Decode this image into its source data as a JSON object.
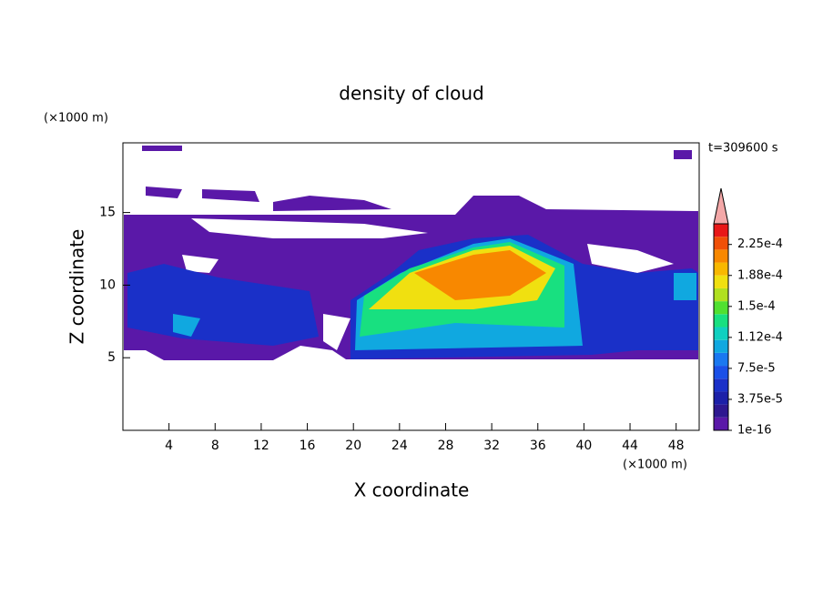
{
  "chart_data": {
    "type": "contour",
    "title": "density of cloud",
    "x_label": "X coordinate",
    "y_label": "Z coordinate",
    "x_unit": "(×1000 m)",
    "y_unit": "(×1000 m)",
    "annotation": "t=309600 s",
    "xlim": [
      0,
      50
    ],
    "ylim": [
      0,
      19.8
    ],
    "xticks": [
      4,
      8,
      12,
      16,
      20,
      24,
      28,
      32,
      36,
      40,
      44,
      48
    ],
    "yticks": [
      5,
      10,
      15
    ],
    "clim": [
      1e-16,
      0.00025
    ],
    "colorbar_colors": [
      "#5a18a8",
      "#2e1890",
      "#1c20a8",
      "#1a30c8",
      "#1a50e8",
      "#1a78f0",
      "#10a8e0",
      "#10d0c0",
      "#18e080",
      "#50e030",
      "#b0e020",
      "#f0e010",
      "#f8b800",
      "#f88800",
      "#f05008",
      "#e81818"
    ],
    "colorbar_ticks": [
      {
        "value": 1e-16,
        "label": "1e-16"
      },
      {
        "value": 3.75e-05,
        "label": "3.75e-5"
      },
      {
        "value": 7.5e-05,
        "label": "7.5e-5"
      },
      {
        "value": 0.0001125,
        "label": "1.12e-4"
      },
      {
        "value": 0.00015,
        "label": "1.5e-4"
      },
      {
        "value": 0.0001875,
        "label": "1.88e-4"
      },
      {
        "value": 0.000225,
        "label": "2.25e-4"
      }
    ]
  }
}
